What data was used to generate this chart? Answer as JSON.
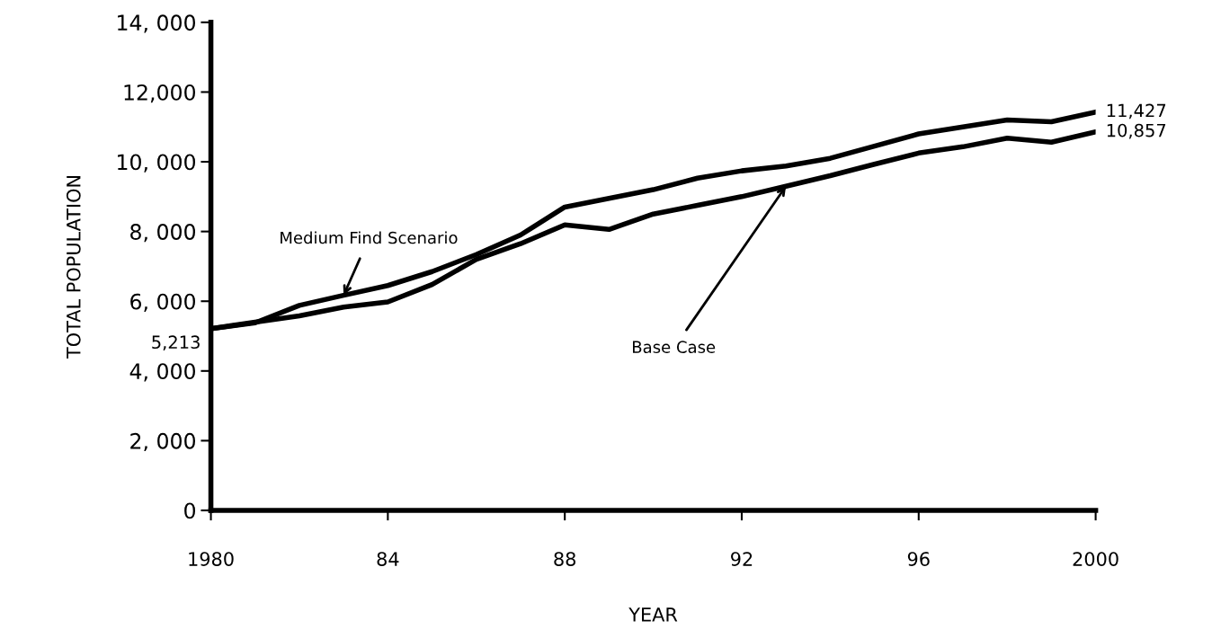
{
  "chart_data": {
    "type": "line",
    "xlabel": "YEAR",
    "ylabel": "TOTAL POPULATION",
    "x": [
      1980,
      1981,
      1982,
      1983,
      1984,
      1985,
      1986,
      1987,
      1988,
      1989,
      1990,
      1991,
      1992,
      1993,
      1994,
      1995,
      1996,
      1997,
      1998,
      1999,
      2000
    ],
    "series": [
      {
        "name": "Medium Find Scenario",
        "color": "#000000",
        "values": [
          5213,
          5380,
          5880,
          6170,
          6450,
          6850,
          7340,
          7900,
          8700,
          8950,
          9200,
          9530,
          9740,
          9880,
          10100,
          10450,
          10800,
          11000,
          11200,
          11150,
          11427
        ],
        "value_labels": [
          "5,213",
          null,
          null,
          null,
          null,
          null,
          null,
          null,
          null,
          null,
          null,
          null,
          null,
          null,
          null,
          null,
          null,
          null,
          null,
          null,
          "11,427"
        ]
      },
      {
        "name": "Base Case",
        "color": "#000000",
        "values": [
          5213,
          5400,
          5580,
          5830,
          5980,
          6480,
          7200,
          7650,
          8190,
          8060,
          8500,
          8750,
          9000,
          9300,
          9600,
          9930,
          10250,
          10430,
          10680,
          10560,
          10857
        ],
        "value_labels": [
          null,
          null,
          null,
          null,
          null,
          null,
          null,
          null,
          null,
          null,
          null,
          null,
          null,
          null,
          null,
          null,
          null,
          null,
          null,
          null,
          "10,857"
        ]
      }
    ],
    "xlim": [
      1980,
      2000
    ],
    "ylim": [
      0,
      14000
    ],
    "xticks": [
      1980,
      {
        "value": 1984,
        "label": "84"
      },
      {
        "value": 1988,
        "label": "88"
      },
      {
        "value": 1992,
        "label": "92"
      },
      {
        "value": 1996,
        "label": "96"
      },
      2000
    ],
    "yticks": [
      0,
      {
        "value": 2000,
        "label": "2, 000"
      },
      {
        "value": 4000,
        "label": "4, 000"
      },
      {
        "value": 6000,
        "label": "6, 000"
      },
      {
        "value": 8000,
        "label": "8, 000"
      },
      {
        "value": 10000,
        "label": "10, 000"
      },
      {
        "value": 12000,
        "label": "12,000"
      },
      {
        "value": 14000,
        "label": "14, 000"
      }
    ],
    "grid": false,
    "legend": false,
    "marker": "none",
    "line_style": "solid"
  }
}
